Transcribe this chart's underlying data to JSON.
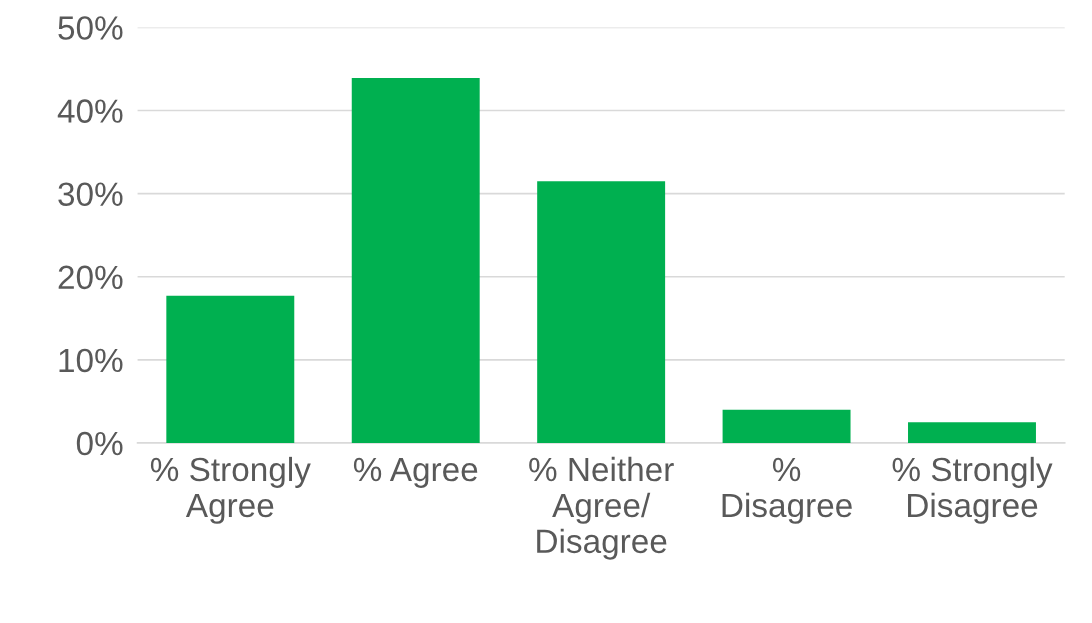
{
  "chart_data": {
    "type": "bar",
    "categories": [
      "% Strongly\nAgree",
      "% Agree",
      "% Neither\nAgree/\nDisagree",
      "%\nDisagree",
      "% Strongly\nDisagree"
    ],
    "values": [
      17.7,
      43.9,
      31.5,
      4.0,
      2.5
    ],
    "color": "#00b050",
    "ylim": [
      0,
      50
    ],
    "yticks": [
      {
        "value": 0,
        "label": "0%"
      },
      {
        "value": 10,
        "label": "10%"
      },
      {
        "value": 20,
        "label": "20%"
      },
      {
        "value": 30,
        "label": "30%"
      },
      {
        "value": 40,
        "label": "40%"
      },
      {
        "value": 50,
        "label": "50%"
      }
    ],
    "grid": "y"
  }
}
